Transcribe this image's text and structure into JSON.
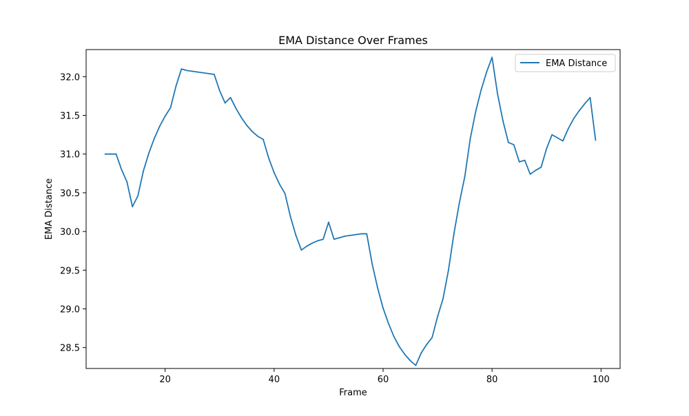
{
  "chart_data": {
    "type": "line",
    "title": "EMA Distance Over Frames",
    "xlabel": "Frame",
    "ylabel": "EMA Distance",
    "xlim": [
      5.5,
      103.5
    ],
    "ylim": [
      28.23,
      32.35
    ],
    "xticks": [
      20,
      40,
      60,
      80,
      100
    ],
    "yticks": [
      28.5,
      29.0,
      29.5,
      30.0,
      30.5,
      31.0,
      31.5,
      32.0
    ],
    "xtick_labels": [
      "20",
      "40",
      "60",
      "80",
      "100"
    ],
    "ytick_labels": [
      "28.5",
      "29.0",
      "29.5",
      "30.0",
      "30.5",
      "31.0",
      "31.5",
      "32.0"
    ],
    "grid": false,
    "legend_position": "upper right",
    "series": [
      {
        "name": "EMA Distance",
        "color": "#1f77b4",
        "x": [
          9,
          10,
          11,
          12,
          13,
          14,
          15,
          16,
          17,
          18,
          19,
          20,
          21,
          22,
          23,
          24,
          25,
          26,
          27,
          28,
          29,
          30,
          31,
          32,
          33,
          34,
          35,
          36,
          37,
          38,
          39,
          40,
          41,
          42,
          43,
          44,
          45,
          46,
          47,
          48,
          49,
          50,
          51,
          52,
          53,
          54,
          55,
          56,
          57,
          58,
          59,
          60,
          61,
          62,
          63,
          64,
          65,
          66,
          67,
          68,
          69,
          70,
          71,
          72,
          73,
          74,
          75,
          76,
          77,
          78,
          79,
          80,
          81,
          82,
          83,
          84,
          85,
          86,
          87,
          88,
          89,
          90,
          91,
          92,
          93,
          94,
          95,
          96,
          97,
          98,
          99
        ],
        "y": [
          31.0,
          31.0,
          31.0,
          30.8,
          30.64,
          30.32,
          30.46,
          30.78,
          31.01,
          31.2,
          31.36,
          31.49,
          31.6,
          31.88,
          32.1,
          32.08,
          32.07,
          32.06,
          32.05,
          32.04,
          32.03,
          31.82,
          31.66,
          31.73,
          31.59,
          31.47,
          31.37,
          31.29,
          31.23,
          31.19,
          30.95,
          30.76,
          30.61,
          30.49,
          30.19,
          29.95,
          29.76,
          29.81,
          29.85,
          29.88,
          29.9,
          30.12,
          29.9,
          29.92,
          29.94,
          29.95,
          29.96,
          29.97,
          29.97,
          29.58,
          29.27,
          29.01,
          28.81,
          28.64,
          28.51,
          28.41,
          28.33,
          28.27,
          28.43,
          28.54,
          28.63,
          28.9,
          29.13,
          29.5,
          29.97,
          30.37,
          30.71,
          31.2,
          31.55,
          31.83,
          32.06,
          32.25,
          31.78,
          31.43,
          31.15,
          31.12,
          30.9,
          30.92,
          30.74,
          30.79,
          30.83,
          31.07,
          31.25,
          31.21,
          31.17,
          31.33,
          31.46,
          31.56,
          31.65,
          31.73,
          31.18
        ]
      }
    ]
  }
}
